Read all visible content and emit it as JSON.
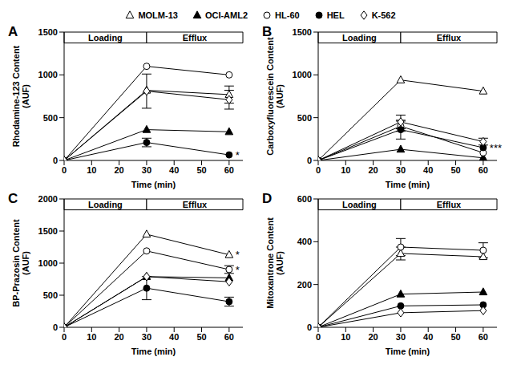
{
  "chart_data": [
    {
      "type": "line",
      "title": "A",
      "xlabel": "Time (min)",
      "ylabel": "Rhodamine-123 Content (AUF)",
      "legend": "top",
      "x": [
        0,
        30,
        60
      ],
      "xlim": [
        0,
        65
      ],
      "xticks": [
        0,
        10,
        20,
        30,
        40,
        50,
        60
      ],
      "ylim": [
        0,
        1500
      ],
      "yticks": [
        0,
        500,
        1000,
        1500
      ],
      "series": [
        {
          "name": "MOLM-13",
          "color": "#000000",
          "marker": "triangle-open",
          "values": [
            0,
            820,
            770
          ],
          "errors": [
            null,
            null,
            100
          ]
        },
        {
          "name": "OCI-AML2",
          "color": "#000000",
          "marker": "triangle",
          "values": [
            0,
            360,
            335
          ],
          "errors": [
            null,
            null,
            null
          ]
        },
        {
          "name": "HL-60",
          "color": "#000000",
          "marker": "circle-open",
          "values": [
            0,
            1100,
            1000
          ],
          "errors": [
            null,
            null,
            null
          ]
        },
        {
          "name": "HEL",
          "color": "#000000",
          "marker": "circle",
          "values": [
            0,
            210,
            65
          ],
          "errors": [
            null,
            50,
            null
          ]
        },
        {
          "name": "K-562",
          "color": "#000000",
          "marker": "diamond-open",
          "values": [
            0,
            810,
            710
          ],
          "errors": [
            null,
            200,
            110
          ]
        }
      ],
      "annotations": [
        {
          "text": "Loading",
          "x_range": [
            0,
            30
          ]
        },
        {
          "text": "Efflux",
          "x_range": [
            30,
            65
          ]
        },
        {
          "text": "*",
          "x": 60,
          "y": 65
        }
      ]
    },
    {
      "type": "line",
      "title": "B",
      "xlabel": "Time (min)",
      "ylabel": "Carboxyfluorescein Content (AUF)",
      "legend": "top",
      "x": [
        0,
        30,
        60
      ],
      "xlim": [
        0,
        65
      ],
      "xticks": [
        0,
        10,
        20,
        30,
        40,
        50,
        60
      ],
      "ylim": [
        0,
        1500
      ],
      "yticks": [
        0,
        500,
        1000,
        1500
      ],
      "series": [
        {
          "name": "MOLM-13",
          "color": "#000000",
          "marker": "triangle-open",
          "values": [
            0,
            940,
            810
          ],
          "errors": [
            null,
            null,
            null
          ]
        },
        {
          "name": "OCI-AML2",
          "color": "#000000",
          "marker": "triangle",
          "values": [
            0,
            130,
            30
          ],
          "errors": [
            null,
            null,
            null
          ]
        },
        {
          "name": "HL-60",
          "color": "#000000",
          "marker": "circle-open",
          "values": [
            0,
            400,
            90
          ],
          "errors": [
            null,
            60,
            null
          ]
        },
        {
          "name": "HEL",
          "color": "#000000",
          "marker": "circle",
          "values": [
            0,
            360,
            150
          ],
          "errors": [
            null,
            110,
            null
          ]
        },
        {
          "name": "K-562",
          "color": "#000000",
          "marker": "diamond-open",
          "values": [
            0,
            450,
            220
          ],
          "errors": [
            null,
            80,
            40
          ]
        }
      ],
      "annotations": [
        {
          "text": "Loading",
          "x_range": [
            0,
            30
          ]
        },
        {
          "text": "Efflux",
          "x_range": [
            30,
            65
          ]
        },
        {
          "text": "***",
          "x": 60,
          "y": 150
        }
      ]
    },
    {
      "type": "line",
      "title": "C",
      "xlabel": "Time (min)",
      "ylabel": "BP-Prazosin Content (AUF)",
      "legend": "top",
      "x": [
        0,
        30,
        60
      ],
      "xlim": [
        0,
        65
      ],
      "xticks": [
        0,
        10,
        20,
        30,
        40,
        50,
        60
      ],
      "ylim": [
        0,
        2000
      ],
      "yticks": [
        0,
        500,
        1000,
        1500,
        2000
      ],
      "series": [
        {
          "name": "MOLM-13",
          "color": "#000000",
          "marker": "triangle-open",
          "values": [
            0,
            1450,
            1130
          ],
          "errors": [
            null,
            null,
            null
          ]
        },
        {
          "name": "OCI-AML2",
          "color": "#000000",
          "marker": "triangle",
          "values": [
            0,
            790,
            770
          ],
          "errors": [
            null,
            null,
            null
          ]
        },
        {
          "name": "HL-60",
          "color": "#000000",
          "marker": "circle-open",
          "values": [
            0,
            1190,
            900
          ],
          "errors": [
            null,
            null,
            60
          ]
        },
        {
          "name": "HEL",
          "color": "#000000",
          "marker": "circle",
          "values": [
            0,
            610,
            400
          ],
          "errors": [
            null,
            180,
            70
          ]
        },
        {
          "name": "K-562",
          "color": "#000000",
          "marker": "diamond-open",
          "values": [
            0,
            790,
            710
          ],
          "errors": [
            null,
            null,
            null
          ]
        }
      ],
      "annotations": [
        {
          "text": "Loading",
          "x_range": [
            0,
            30
          ]
        },
        {
          "text": "Efflux",
          "x_range": [
            30,
            65
          ]
        },
        {
          "text": "*",
          "x": 60,
          "y": 1130
        },
        {
          "text": "*",
          "x": 60,
          "y": 900
        }
      ]
    },
    {
      "type": "line",
      "title": "D",
      "xlabel": "Time (min)",
      "ylabel": "Mitoxantrone Content (AUF)",
      "legend": "top",
      "x": [
        0,
        30,
        60
      ],
      "xlim": [
        0,
        65
      ],
      "xticks": [
        0,
        10,
        20,
        30,
        40,
        50,
        60
      ],
      "ylim": [
        0,
        600
      ],
      "yticks": [
        0,
        200,
        400,
        600
      ],
      "series": [
        {
          "name": "MOLM-13",
          "color": "#000000",
          "marker": "triangle-open",
          "values": [
            0,
            345,
            330
          ],
          "errors": [
            null,
            30,
            null
          ]
        },
        {
          "name": "OCI-AML2",
          "color": "#000000",
          "marker": "triangle",
          "values": [
            0,
            155,
            165
          ],
          "errors": [
            null,
            null,
            null
          ]
        },
        {
          "name": "HL-60",
          "color": "#000000",
          "marker": "circle-open",
          "values": [
            0,
            375,
            360
          ],
          "errors": [
            null,
            40,
            35
          ]
        },
        {
          "name": "HEL",
          "color": "#000000",
          "marker": "circle",
          "values": [
            0,
            100,
            105
          ],
          "errors": [
            null,
            null,
            null
          ]
        },
        {
          "name": "K-562",
          "color": "#000000",
          "marker": "diamond-open",
          "values": [
            0,
            68,
            78
          ],
          "errors": [
            null,
            null,
            null
          ]
        }
      ],
      "annotations": [
        {
          "text": "Loading",
          "x_range": [
            0,
            30
          ]
        },
        {
          "text": "Efflux",
          "x_range": [
            30,
            65
          ]
        }
      ]
    }
  ]
}
